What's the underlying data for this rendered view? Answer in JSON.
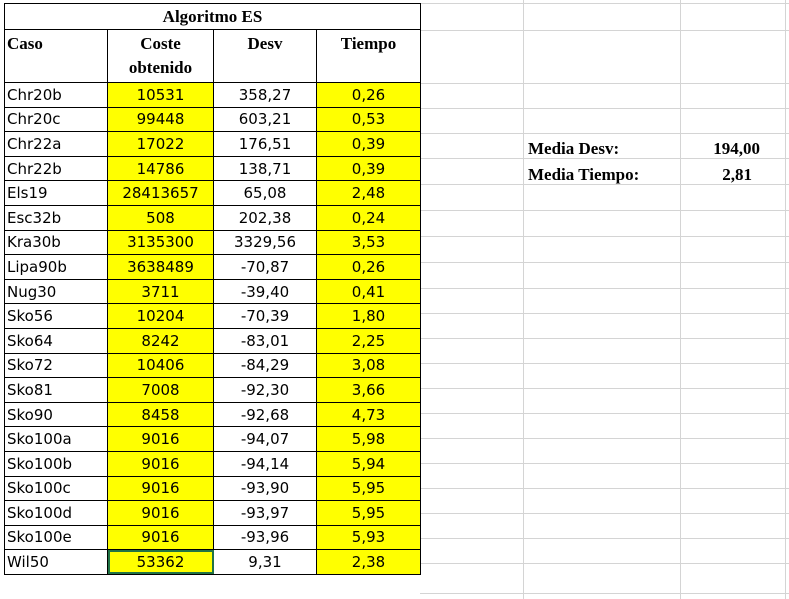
{
  "table": {
    "title": "Algoritmo ES",
    "headers": {
      "caso": "Caso",
      "coste_line1": "Coste",
      "coste_line2": "obtenido",
      "desv": "Desv",
      "tiempo": "Tiempo"
    },
    "rows": [
      {
        "caso": "Chr20b",
        "coste": "10531",
        "desv": "358,27",
        "tiempo": "0,26"
      },
      {
        "caso": "Chr20c",
        "coste": "99448",
        "desv": "603,21",
        "tiempo": "0,53"
      },
      {
        "caso": "Chr22a",
        "coste": "17022",
        "desv": "176,51",
        "tiempo": "0,39"
      },
      {
        "caso": "Chr22b",
        "coste": "14786",
        "desv": "138,71",
        "tiempo": "0,39"
      },
      {
        "caso": "Els19",
        "coste": "28413657",
        "desv": "65,08",
        "tiempo": "2,48"
      },
      {
        "caso": "Esc32b",
        "coste": "508",
        "desv": "202,38",
        "tiempo": "0,24"
      },
      {
        "caso": "Kra30b",
        "coste": "3135300",
        "desv": "3329,56",
        "tiempo": "3,53"
      },
      {
        "caso": "Lipa90b",
        "coste": "3638489",
        "desv": "-70,87",
        "tiempo": "0,26"
      },
      {
        "caso": "Nug30",
        "coste": "3711",
        "desv": "-39,40",
        "tiempo": "0,41"
      },
      {
        "caso": "Sko56",
        "coste": "10204",
        "desv": "-70,39",
        "tiempo": "1,80"
      },
      {
        "caso": "Sko64",
        "coste": "8242",
        "desv": "-83,01",
        "tiempo": "2,25"
      },
      {
        "caso": "Sko72",
        "coste": "10406",
        "desv": "-84,29",
        "tiempo": "3,08"
      },
      {
        "caso": "Sko81",
        "coste": "7008",
        "desv": "-92,30",
        "tiempo": "3,66"
      },
      {
        "caso": "Sko90",
        "coste": "8458",
        "desv": "-92,68",
        "tiempo": "4,73"
      },
      {
        "caso": "Sko100a",
        "coste": "9016",
        "desv": "-94,07",
        "tiempo": "5,98"
      },
      {
        "caso": "Sko100b",
        "coste": "9016",
        "desv": "-94,14",
        "tiempo": "5,94"
      },
      {
        "caso": "Sko100c",
        "coste": "9016",
        "desv": "-93,90",
        "tiempo": "5,95"
      },
      {
        "caso": "Sko100d",
        "coste": "9016",
        "desv": "-93,97",
        "tiempo": "5,95"
      },
      {
        "caso": "Sko100e",
        "coste": "9016",
        "desv": "-93,96",
        "tiempo": "5,93"
      },
      {
        "caso": "Wil50",
        "coste": "53362",
        "desv": "9,31",
        "tiempo": "2,38"
      }
    ]
  },
  "summary": {
    "media_desv_label": "Media Desv:",
    "media_desv_value": "194,00",
    "media_tiempo_label": "Media Tiempo:",
    "media_tiempo_value": "2,81"
  },
  "colors": {
    "highlight": "#ffff00",
    "selection": "#217346",
    "gridline": "#d4d4d4"
  }
}
